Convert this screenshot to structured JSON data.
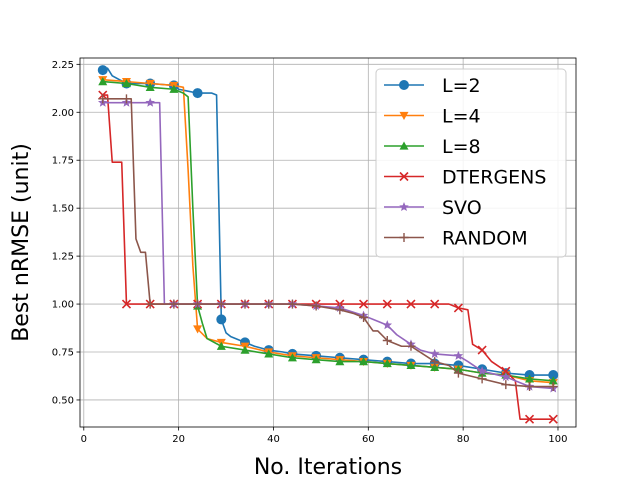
{
  "chart_data": {
    "type": "line",
    "xlabel": "No. Iterations",
    "ylabel": "Best nRMSE (unit)",
    "xlim": [
      -0.8,
      103.8
    ],
    "ylim": [
      0.359,
      2.283
    ],
    "grid": true,
    "legend_placement": "upper right",
    "xticks": [
      0,
      20,
      40,
      60,
      80,
      100
    ],
    "yticks": [
      0.5,
      0.75,
      1.0,
      1.25,
      1.5,
      1.75,
      2.0,
      2.25
    ],
    "xtick_labels": [
      "0",
      "20",
      "40",
      "60",
      "80",
      "100"
    ],
    "ytick_labels": [
      "0.50",
      "0.75",
      "1.00",
      "1.25",
      "1.50",
      "1.75",
      "2.00",
      "2.25"
    ],
    "series": [
      {
        "name": "L=2",
        "color": "#1f77b4",
        "marker": "circle",
        "markevery": 5,
        "x": [
          4,
          5,
          6,
          9,
          14,
          19,
          20,
          22,
          24,
          25,
          27,
          28,
          29,
          30,
          31,
          33,
          34,
          36,
          39,
          42,
          44,
          49,
          54,
          59,
          64,
          69,
          74,
          79,
          84,
          89,
          94,
          99
        ],
        "y": [
          2.22,
          2.23,
          2.19,
          2.15,
          2.15,
          2.14,
          2.12,
          2.11,
          2.1,
          2.1,
          2.1,
          2.09,
          0.92,
          0.85,
          0.83,
          0.81,
          0.8,
          0.78,
          0.76,
          0.75,
          0.74,
          0.73,
          0.72,
          0.71,
          0.7,
          0.69,
          0.69,
          0.68,
          0.66,
          0.64,
          0.63,
          0.63
        ]
      },
      {
        "name": "L=4",
        "color": "#ff7f0e",
        "marker": "triangle-down",
        "markevery": 5,
        "x": [
          4,
          9,
          14,
          19,
          21,
          22,
          23,
          24,
          26,
          29,
          34,
          39,
          44,
          49,
          54,
          59,
          64,
          69,
          74,
          79,
          84,
          89,
          94,
          99
        ],
        "y": [
          2.17,
          2.16,
          2.15,
          2.14,
          2.13,
          1.7,
          1.2,
          0.87,
          0.82,
          0.8,
          0.78,
          0.75,
          0.73,
          0.72,
          0.71,
          0.7,
          0.69,
          0.68,
          0.67,
          0.66,
          0.64,
          0.63,
          0.6,
          0.59
        ]
      },
      {
        "name": "L=8",
        "color": "#2ca02c",
        "marker": "triangle-up",
        "markevery": 5,
        "x": [
          4,
          9,
          14,
          19,
          21,
          22,
          23,
          24,
          25,
          26,
          29,
          34,
          39,
          44,
          49,
          54,
          59,
          64,
          69,
          74,
          79,
          84,
          89,
          94,
          99
        ],
        "y": [
          2.16,
          2.15,
          2.13,
          2.12,
          2.1,
          2.08,
          1.5,
          0.99,
          0.9,
          0.82,
          0.78,
          0.76,
          0.74,
          0.72,
          0.71,
          0.7,
          0.7,
          0.69,
          0.68,
          0.67,
          0.66,
          0.64,
          0.63,
          0.61,
          0.6
        ]
      },
      {
        "name": "DTERGENS",
        "color": "#d62728",
        "marker": "x",
        "markevery": 5,
        "x": [
          4,
          5,
          6,
          8,
          9,
          14,
          19,
          24,
          29,
          34,
          39,
          44,
          49,
          54,
          59,
          64,
          69,
          74,
          77,
          79,
          81,
          82,
          84,
          86,
          89,
          91,
          92,
          94,
          99
        ],
        "y": [
          2.09,
          2.09,
          1.74,
          1.74,
          1.0,
          1.0,
          1.0,
          1.0,
          1.0,
          1.0,
          1.0,
          1.0,
          1.0,
          1.0,
          1.0,
          1.0,
          1.0,
          1.0,
          1.0,
          0.98,
          0.97,
          0.79,
          0.76,
          0.7,
          0.65,
          0.6,
          0.4,
          0.4,
          0.4
        ]
      },
      {
        "name": "SVO",
        "color": "#9467bd",
        "marker": "star",
        "markevery": 5,
        "x": [
          4,
          9,
          14,
          16,
          17,
          19,
          24,
          29,
          34,
          39,
          44,
          49,
          54,
          59,
          61,
          63,
          64,
          66,
          69,
          71,
          74,
          79,
          81,
          84,
          89,
          94,
          99
        ],
        "y": [
          2.05,
          2.05,
          2.05,
          2.05,
          1.0,
          1.0,
          1.0,
          1.0,
          1.0,
          1.0,
          1.0,
          0.99,
          0.98,
          0.94,
          0.92,
          0.9,
          0.89,
          0.84,
          0.79,
          0.76,
          0.74,
          0.73,
          0.7,
          0.65,
          0.62,
          0.57,
          0.56
        ]
      },
      {
        "name": "RANDOM",
        "color": "#8c564b",
        "marker": "plus",
        "markevery": 5,
        "x": [
          4,
          9,
          10,
          11,
          12,
          13,
          14,
          15,
          19,
          24,
          29,
          34,
          39,
          44,
          49,
          54,
          57,
          59,
          61,
          62,
          64,
          67,
          69,
          74,
          77,
          79,
          84,
          89,
          94,
          99
        ],
        "y": [
          2.07,
          2.07,
          2.07,
          1.34,
          1.27,
          1.27,
          1.0,
          1.0,
          1.0,
          1.0,
          1.0,
          1.0,
          1.0,
          1.0,
          0.99,
          0.97,
          0.95,
          0.93,
          0.86,
          0.86,
          0.81,
          0.78,
          0.78,
          0.7,
          0.68,
          0.64,
          0.61,
          0.58,
          0.57,
          0.57
        ]
      }
    ]
  }
}
